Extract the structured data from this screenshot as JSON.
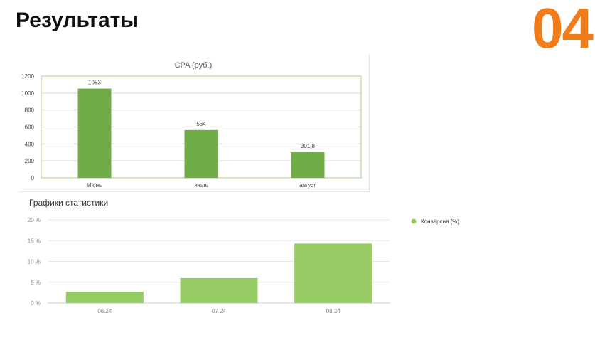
{
  "header": {
    "title": "Результаты",
    "page_number": "04"
  },
  "chart_data": [
    {
      "type": "bar",
      "title": "CPA (руб.)",
      "xlabel": "",
      "ylabel": "",
      "categories": [
        "Июнь",
        "июль",
        "август"
      ],
      "values": [
        1053,
        564,
        301.8
      ],
      "data_labels": [
        "1053",
        "564",
        "301,8"
      ],
      "ylim": [
        0,
        1200
      ],
      "yticks": [
        0,
        200,
        400,
        600,
        800,
        1000,
        1200
      ],
      "grid": true,
      "bar_color": "#70ad47",
      "axis_color": "#a9d18e"
    },
    {
      "type": "bar",
      "title": "Графики статистики",
      "xlabel": "",
      "ylabel": "",
      "categories": [
        "06.24",
        "07.24",
        "08.24"
      ],
      "series": [
        {
          "name": "Конверсия (%)",
          "values": [
            2.7,
            6.0,
            14.3
          ]
        }
      ],
      "ylim": [
        0,
        20
      ],
      "yticks": [
        0,
        5,
        10,
        15,
        20
      ],
      "ytick_labels": [
        "0 %",
        "5 %",
        "10 %",
        "15 %",
        "20 %"
      ],
      "grid": true,
      "legend": "right",
      "bar_color": "#97cc64"
    }
  ]
}
